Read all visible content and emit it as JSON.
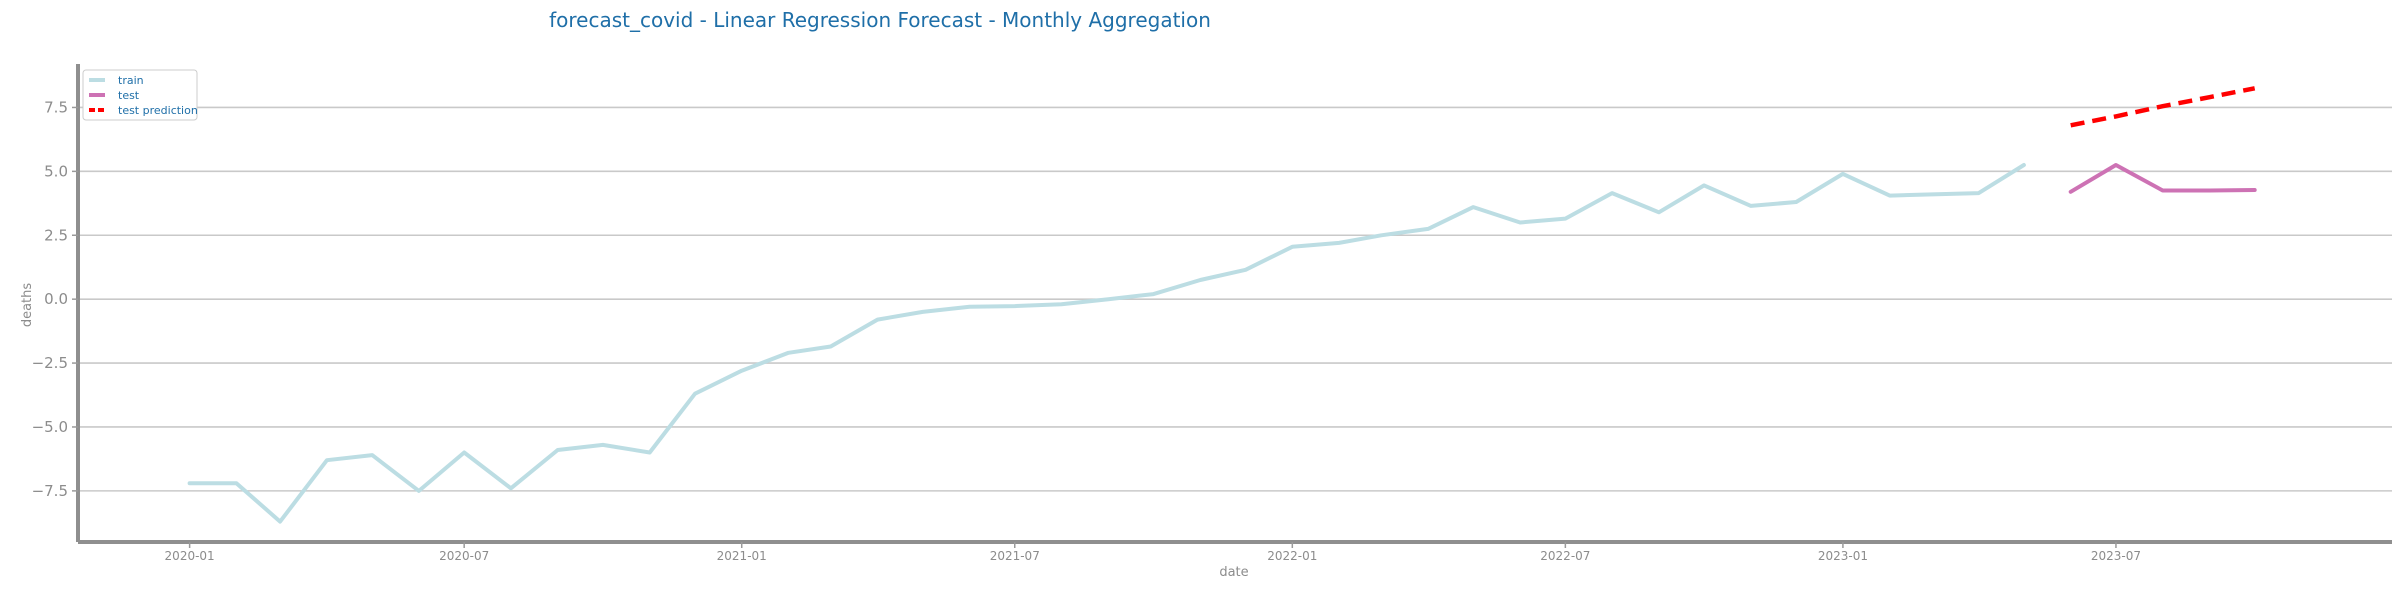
{
  "chart_data": {
    "type": "line",
    "title": "forecast_covid - Linear Regression Forecast - Monthly Aggregation",
    "xlabel": "date",
    "ylabel": "deaths",
    "xlim": [
      "2019-10-19",
      "2023-12-31"
    ],
    "ylim": [
      -9.5,
      9.2
    ],
    "grid": "horizontal",
    "legend_position": "top-left",
    "x_ticks": [
      "2020-01",
      "2020-07",
      "2021-01",
      "2021-07",
      "2022-01",
      "2022-07",
      "2023-01",
      "2023-07"
    ],
    "y_ticks": [
      -7.5,
      -5.0,
      -2.5,
      0.0,
      2.5,
      5.0,
      7.5
    ],
    "series": [
      {
        "name": "train",
        "color": "#bcdde3",
        "style": "solid",
        "points": [
          [
            "2020-01-01",
            -7.2
          ],
          [
            "2020-02-01",
            -7.2
          ],
          [
            "2020-03-01",
            -8.7
          ],
          [
            "2020-04-01",
            -6.3
          ],
          [
            "2020-05-01",
            -6.1
          ],
          [
            "2020-06-01",
            -7.5
          ],
          [
            "2020-07-01",
            -6.0
          ],
          [
            "2020-08-01",
            -7.4
          ],
          [
            "2020-09-01",
            -5.9
          ],
          [
            "2020-10-01",
            -5.7
          ],
          [
            "2020-11-01",
            -6.0
          ],
          [
            "2020-12-01",
            -3.7
          ],
          [
            "2021-01-01",
            -2.8
          ],
          [
            "2021-02-01",
            -2.1
          ],
          [
            "2021-03-01",
            -1.85
          ],
          [
            "2021-04-01",
            -0.8
          ],
          [
            "2021-05-01",
            -0.5
          ],
          [
            "2021-06-01",
            -0.3
          ],
          [
            "2021-07-01",
            -0.27
          ],
          [
            "2021-08-01",
            -0.2
          ],
          [
            "2021-09-01",
            0.0
          ],
          [
            "2021-10-01",
            0.2
          ],
          [
            "2021-11-01",
            0.75
          ],
          [
            "2021-12-01",
            1.15
          ],
          [
            "2022-01-01",
            2.05
          ],
          [
            "2022-02-01",
            2.2
          ],
          [
            "2022-03-01",
            2.5
          ],
          [
            "2022-04-01",
            2.75
          ],
          [
            "2022-05-01",
            3.6
          ],
          [
            "2022-06-01",
            3.0
          ],
          [
            "2022-07-01",
            3.15
          ],
          [
            "2022-08-01",
            4.15
          ],
          [
            "2022-09-01",
            3.4
          ],
          [
            "2022-10-01",
            4.45
          ],
          [
            "2022-11-01",
            3.65
          ],
          [
            "2022-12-01",
            3.8
          ],
          [
            "2023-01-01",
            4.9
          ],
          [
            "2023-02-01",
            4.05
          ],
          [
            "2023-03-01",
            4.1
          ],
          [
            "2023-04-01",
            4.15
          ],
          [
            "2023-05-01",
            5.25
          ]
        ]
      },
      {
        "name": "test",
        "color": "#cd72b4",
        "style": "solid",
        "points": [
          [
            "2023-06-01",
            4.2
          ],
          [
            "2023-07-01",
            5.25
          ],
          [
            "2023-08-01",
            4.25
          ],
          [
            "2023-09-01",
            4.25
          ],
          [
            "2023-10-01",
            4.27
          ]
        ]
      },
      {
        "name": "test prediction",
        "color": "#ff0000",
        "style": "dashed",
        "points": [
          [
            "2023-06-01",
            6.8
          ],
          [
            "2023-07-01",
            7.15
          ],
          [
            "2023-08-01",
            7.55
          ],
          [
            "2023-09-01",
            7.9
          ],
          [
            "2023-10-01",
            8.25
          ]
        ]
      }
    ]
  }
}
